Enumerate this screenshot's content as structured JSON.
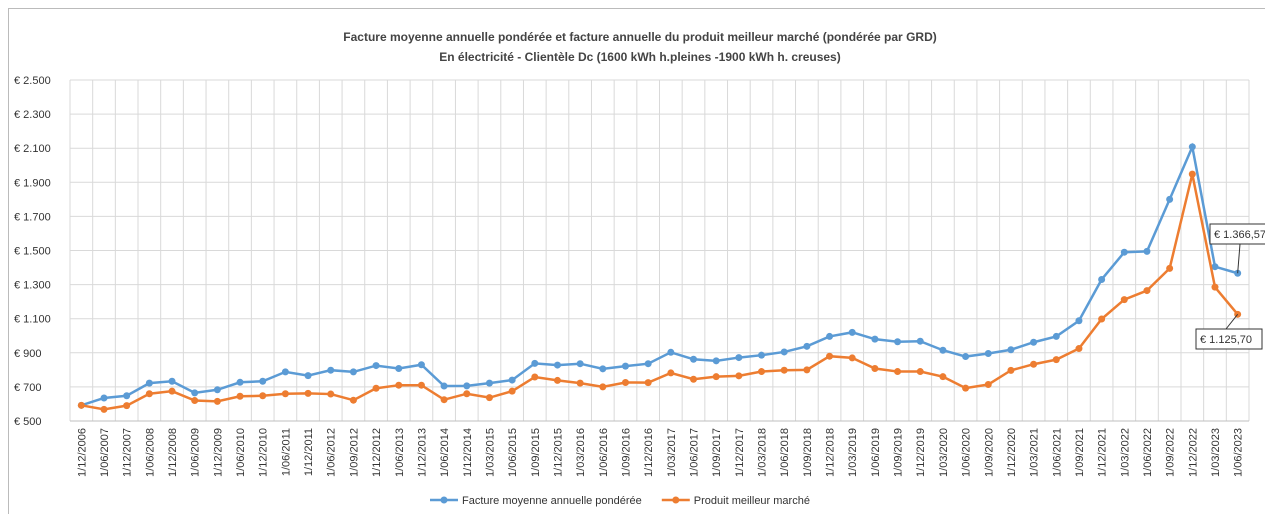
{
  "chart_data": {
    "type": "line",
    "title": "Facture moyenne annuelle pondérée et facture annuelle du produit meilleur marché  (pondérée par GRD)",
    "subtitle": "En électricité - Clientèle Dc (1600 kWh h.pleines -1900 kWh h. creuses)",
    "categories": [
      "1/12/2006",
      "1/06/2007",
      "1/12/2007",
      "1/06/2008",
      "1/12/2008",
      "1/06/2009",
      "1/12/2009",
      "1/06/2010",
      "1/12/2010",
      "1/06/2011",
      "1/12/2011",
      "1/06/2012",
      "1/09/2012",
      "1/12/2012",
      "1/06/2013",
      "1/12/2013",
      "1/06/2014",
      "1/12/2014",
      "1/03/2015",
      "1/06/2015",
      "1/09/2015",
      "1/12/2015",
      "1/03/2016",
      "1/06/2016",
      "1/09/2016",
      "1/12/2016",
      "1/03/2017",
      "1/06/2017",
      "1/09/2017",
      "1/12/2017",
      "1/03/2018",
      "1/06/2018",
      "1/09/2018",
      "1/12/2018",
      "1/03/2019",
      "1/06/2019",
      "1/09/2019",
      "1/12/2019",
      "1/03/2020",
      "1/06/2020",
      "1/09/2020",
      "1/12/2020",
      "1/03/2021",
      "1/06/2021",
      "1/09/2021",
      "1/12/2021",
      "1/03/2022",
      "1/06/2022",
      "1/09/2022",
      "1/12/2022",
      "1/03/2023",
      "1/06/2023"
    ],
    "series": [
      {
        "name": "Facture moyenne annuelle pondérée",
        "color": "#5b9bd5",
        "values": [
          592,
          635,
          648,
          722,
          733,
          665,
          683,
          727,
          733,
          788,
          766,
          798,
          788,
          825,
          808,
          830,
          705,
          706,
          722,
          740,
          838,
          828,
          836,
          806,
          822,
          836,
          903,
          862,
          853,
          872,
          886,
          905,
          938,
          996,
          1020,
          980,
          965,
          968,
          915,
          878,
          896,
          918,
          962,
          996,
          1088,
          1330,
          1490,
          1495,
          1800,
          2108,
          1405,
          1366.57
        ],
        "value_labels": [
          null,
          null,
          null,
          null,
          null,
          null,
          null,
          null,
          null,
          null,
          null,
          null,
          null,
          null,
          null,
          null,
          null,
          null,
          null,
          null,
          null,
          null,
          null,
          null,
          null,
          null,
          null,
          null,
          null,
          null,
          null,
          null,
          null,
          null,
          null,
          null,
          null,
          null,
          null,
          null,
          null,
          null,
          null,
          null,
          null,
          null,
          null,
          null,
          null,
          null,
          null,
          "€ 1.366,57"
        ]
      },
      {
        "name": "Produit meilleur marché",
        "color": "#ed7d31",
        "values": [
          592,
          568,
          590,
          660,
          675,
          620,
          615,
          645,
          648,
          660,
          662,
          658,
          622,
          692,
          710,
          710,
          625,
          660,
          637,
          675,
          758,
          738,
          722,
          700,
          726,
          725,
          782,
          745,
          760,
          765,
          790,
          798,
          800,
          880,
          870,
          808,
          790,
          790,
          760,
          693,
          714,
          797,
          833,
          860,
          925,
          1098,
          1212,
          1265,
          1395,
          1948,
          1285,
          1125.7
        ],
        "value_labels": [
          null,
          null,
          null,
          null,
          null,
          null,
          null,
          null,
          null,
          null,
          null,
          null,
          null,
          null,
          null,
          null,
          null,
          null,
          null,
          null,
          null,
          null,
          null,
          null,
          null,
          null,
          null,
          null,
          null,
          null,
          null,
          null,
          null,
          null,
          null,
          null,
          null,
          null,
          null,
          null,
          null,
          null,
          null,
          null,
          null,
          null,
          null,
          null,
          null,
          null,
          null,
          "€ 1.125,70"
        ]
      }
    ],
    "ylim": [
      500,
      2500
    ],
    "yticks": [
      {
        "value": 500,
        "label": "€ 500"
      },
      {
        "value": 700,
        "label": "€ 700"
      },
      {
        "value": 900,
        "label": "€ 900"
      },
      {
        "value": 1100,
        "label": "€ 1.100"
      },
      {
        "value": 1300,
        "label": "€ 1.300"
      },
      {
        "value": 1500,
        "label": "€ 1.500"
      },
      {
        "value": 1700,
        "label": "€ 1.700"
      },
      {
        "value": 1900,
        "label": "€ 1.900"
      },
      {
        "value": 2100,
        "label": "€ 2.100"
      },
      {
        "value": 2300,
        "label": "€ 2.300"
      },
      {
        "value": 2500,
        "label": "€ 2.500"
      }
    ],
    "grid": true,
    "legend": "bottom"
  }
}
